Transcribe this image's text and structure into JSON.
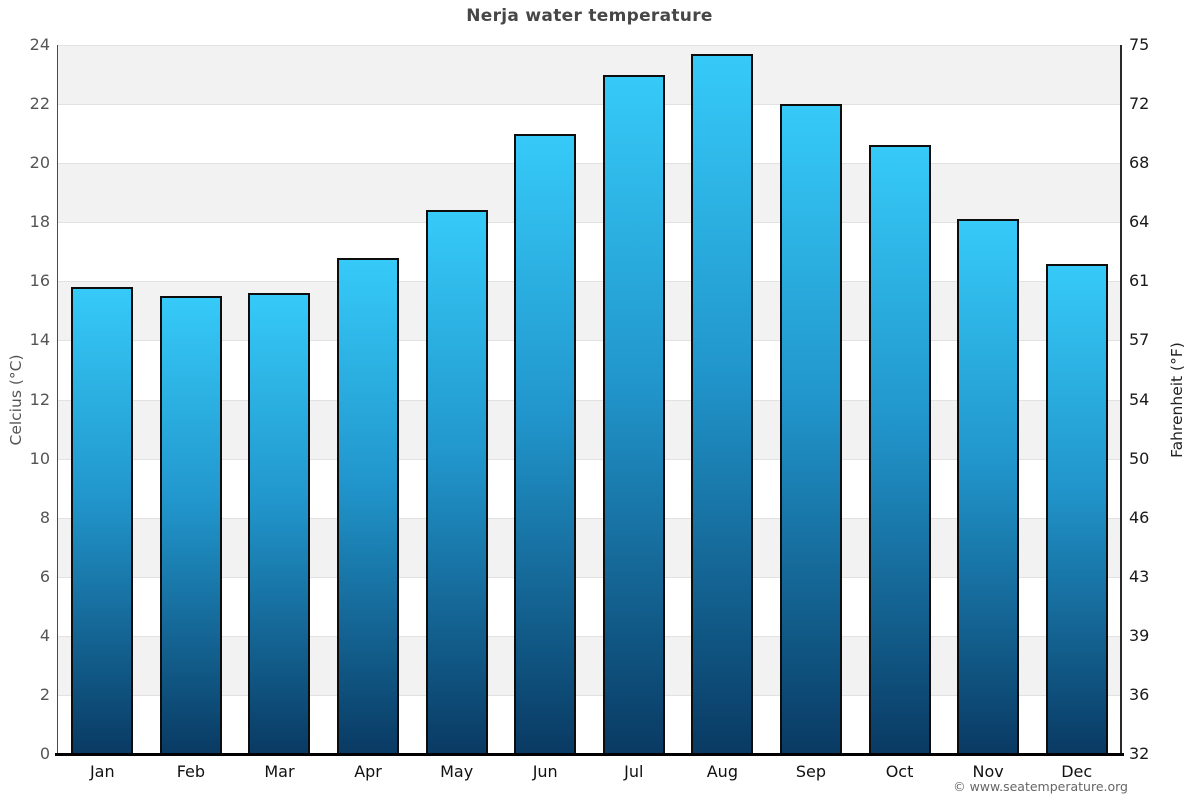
{
  "page": {
    "watermark": "© www.seatemperature.org"
  },
  "chart_data": {
    "type": "bar",
    "title": "Nerja water temperature",
    "categories": [
      "Jan",
      "Feb",
      "Mar",
      "Apr",
      "May",
      "Jun",
      "Jul",
      "Aug",
      "Sep",
      "Oct",
      "Nov",
      "Dec"
    ],
    "values": [
      15.8,
      15.5,
      15.6,
      16.8,
      18.4,
      21.0,
      23.0,
      23.7,
      22.0,
      20.6,
      18.1,
      16.6
    ],
    "value_unit": "°C",
    "xlabel": "",
    "ylabel_left": "Celcius (°C)",
    "ylabel_right": "Fahrenheit (°F)",
    "ylim": [
      0,
      24
    ],
    "yticks_celsius": [
      0,
      2,
      4,
      6,
      8,
      10,
      12,
      14,
      16,
      18,
      20,
      22,
      24
    ],
    "yticks_fahrenheit": [
      32,
      36,
      39,
      43,
      46,
      50,
      54,
      57,
      61,
      64,
      68,
      72,
      75
    ],
    "grid": "horizontal-on",
    "legend": "none",
    "background_bands": "alternating gray/white every 2°C, topmost band gray",
    "colors": {
      "bar_gradient_top": "#36caf8",
      "bar_gradient_mid": "#2196cc",
      "bar_gradient_bottom": "#093a63",
      "bar_border": "#0d0d0d",
      "band_gray": "#f2f2f2",
      "band_white": "#ffffff",
      "gridline": "#e2e2e2",
      "title_text": "#474747",
      "left_tick_text": "#555555",
      "right_tick_text": "#1a1a1a",
      "month_text": "#111111",
      "watermark_text": "#666666"
    }
  }
}
